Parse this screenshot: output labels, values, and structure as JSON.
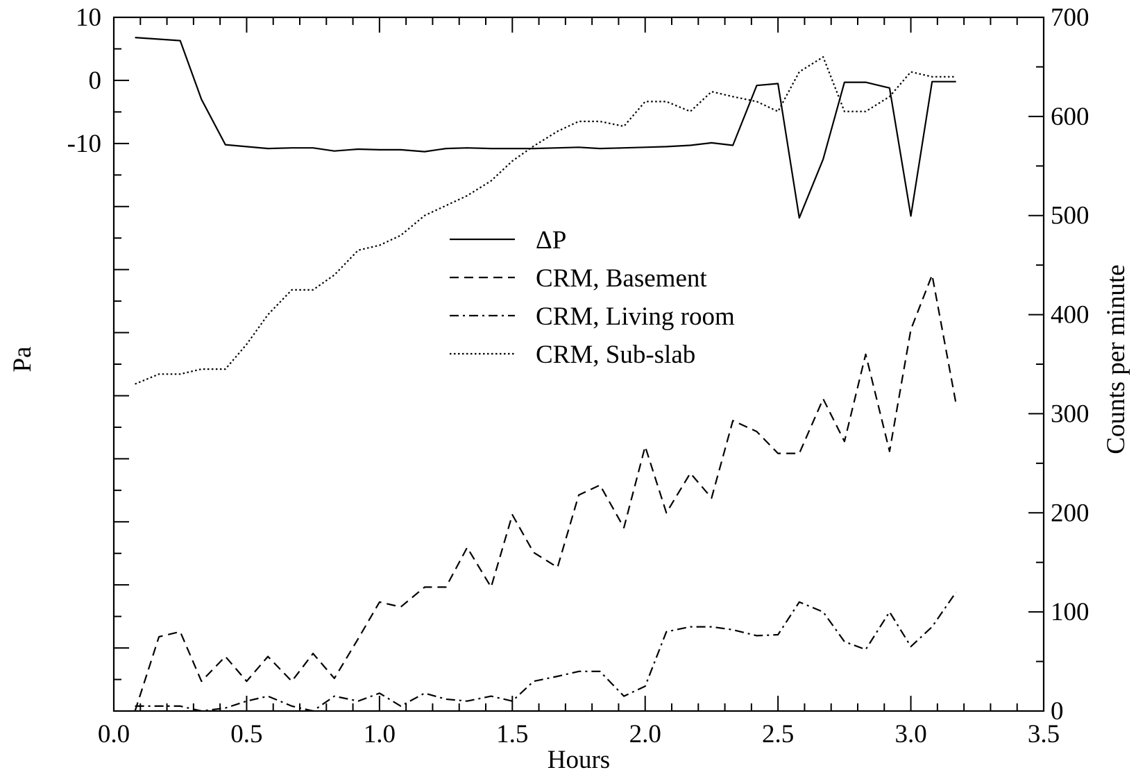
{
  "chart_data": {
    "type": "line",
    "xlabel": "Hours",
    "ylabel_left": "Pa",
    "ylabel_right": "Counts per minute",
    "xlim": [
      0.0,
      3.5
    ],
    "ylim_left": [
      -100,
      10
    ],
    "ylim_right": [
      0,
      700
    ],
    "x_tick_labels": [
      "0.0",
      "0.5",
      "1.0",
      "1.5",
      "2.0",
      "2.5",
      "3.0",
      "3.5"
    ],
    "left_tick_labels": [
      "10",
      "0",
      "-10"
    ],
    "right_tick_labels": [
      "0",
      "100",
      "200",
      "300",
      "400",
      "500",
      "600",
      "700"
    ],
    "grid": false,
    "legend_position": "upper-center",
    "series": [
      {
        "name": "ΔP",
        "axis": "left",
        "style": "solid",
        "x": [
          0.08,
          0.25,
          0.33,
          0.42,
          0.5,
          0.58,
          0.67,
          0.75,
          0.83,
          0.92,
          1.0,
          1.08,
          1.17,
          1.25,
          1.33,
          1.42,
          1.5,
          1.58,
          1.67,
          1.75,
          1.83,
          1.92,
          2.0,
          2.08,
          2.17,
          2.25,
          2.33,
          2.42,
          2.5,
          2.58,
          2.67,
          2.75,
          2.83,
          2.92,
          3.0,
          3.08,
          3.17
        ],
        "y": [
          6.8,
          6.3,
          -3.0,
          -10.2,
          -10.5,
          -10.8,
          -10.7,
          -10.7,
          -11.2,
          -10.9,
          -11.0,
          -11.0,
          -11.3,
          -10.8,
          -10.7,
          -10.8,
          -10.8,
          -10.8,
          -10.7,
          -10.6,
          -10.8,
          -10.7,
          -10.6,
          -10.5,
          -10.3,
          -9.9,
          -10.3,
          -0.8,
          -0.5,
          -21.8,
          -12.5,
          -0.3,
          -0.3,
          -1.2,
          -21.5,
          -0.2,
          -0.2
        ]
      },
      {
        "name": "CRM, Basement",
        "axis": "right",
        "style": "dashed",
        "x": [
          0.08,
          0.17,
          0.25,
          0.33,
          0.42,
          0.5,
          0.58,
          0.67,
          0.75,
          0.83,
          0.92,
          1.0,
          1.08,
          1.17,
          1.25,
          1.33,
          1.42,
          1.5,
          1.58,
          1.67,
          1.75,
          1.83,
          1.92,
          2.0,
          2.08,
          2.17,
          2.25,
          2.33,
          2.42,
          2.5,
          2.58,
          2.67,
          2.75,
          2.83,
          2.92,
          3.0,
          3.08,
          3.17
        ],
        "y": [
          0,
          75,
          80,
          30,
          55,
          30,
          55,
          30,
          58,
          33,
          73,
          110,
          105,
          125,
          125,
          165,
          125,
          198,
          160,
          145,
          218,
          228,
          185,
          267,
          200,
          240,
          215,
          293,
          282,
          260,
          260,
          315,
          272,
          360,
          262,
          385,
          440,
          310
        ]
      },
      {
        "name": "CRM, Living room",
        "axis": "right",
        "style": "dashdot",
        "x": [
          0.08,
          0.17,
          0.25,
          0.33,
          0.42,
          0.5,
          0.58,
          0.67,
          0.75,
          0.83,
          0.92,
          1.0,
          1.08,
          1.17,
          1.25,
          1.33,
          1.42,
          1.5,
          1.58,
          1.67,
          1.75,
          1.83,
          1.92,
          2.0,
          2.08,
          2.17,
          2.25,
          2.33,
          2.42,
          2.5,
          2.58,
          2.67,
          2.75,
          2.83,
          2.92,
          3.0,
          3.08,
          3.17
        ],
        "y": [
          5,
          5,
          5,
          0,
          3,
          10,
          15,
          5,
          0,
          15,
          10,
          18,
          5,
          18,
          12,
          10,
          15,
          10,
          30,
          35,
          40,
          40,
          15,
          25,
          80,
          85,
          85,
          82,
          76,
          77,
          110,
          100,
          70,
          62,
          100,
          65,
          85,
          120
        ]
      },
      {
        "name": "CRM, Sub-slab",
        "axis": "right",
        "style": "dotted",
        "x": [
          0.08,
          0.17,
          0.25,
          0.33,
          0.42,
          0.5,
          0.58,
          0.67,
          0.75,
          0.83,
          0.92,
          1.0,
          1.08,
          1.17,
          1.25,
          1.33,
          1.42,
          1.5,
          1.58,
          1.67,
          1.75,
          1.83,
          1.92,
          2.0,
          2.08,
          2.17,
          2.25,
          2.33,
          2.42,
          2.5,
          2.58,
          2.67,
          2.75,
          2.83,
          2.92,
          3.0,
          3.08,
          3.17
        ],
        "y": [
          330,
          340,
          340,
          345,
          345,
          370,
          400,
          425,
          425,
          440,
          465,
          470,
          480,
          500,
          510,
          520,
          535,
          555,
          570,
          585,
          595,
          595,
          590,
          615,
          615,
          605,
          625,
          620,
          615,
          605,
          645,
          660,
          605,
          605,
          620,
          645,
          640,
          640
        ]
      }
    ]
  }
}
